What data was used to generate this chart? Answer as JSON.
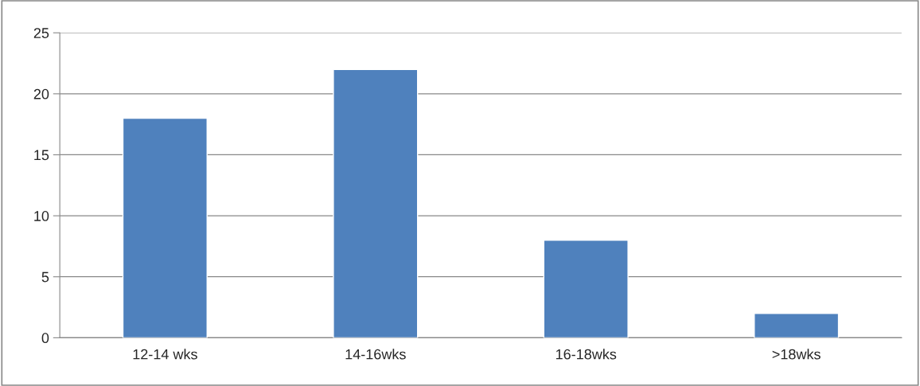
{
  "chart_data": {
    "type": "bar",
    "categories": [
      "12-14 wks",
      "14-16wks",
      "16-18wks",
      ">18wks"
    ],
    "values": [
      18,
      22,
      8,
      2
    ],
    "color": "#4f81bd",
    "ylim": [
      0,
      25
    ],
    "yticks": [
      0,
      5,
      10,
      15,
      20,
      25
    ],
    "grid": "y",
    "legend": false
  }
}
